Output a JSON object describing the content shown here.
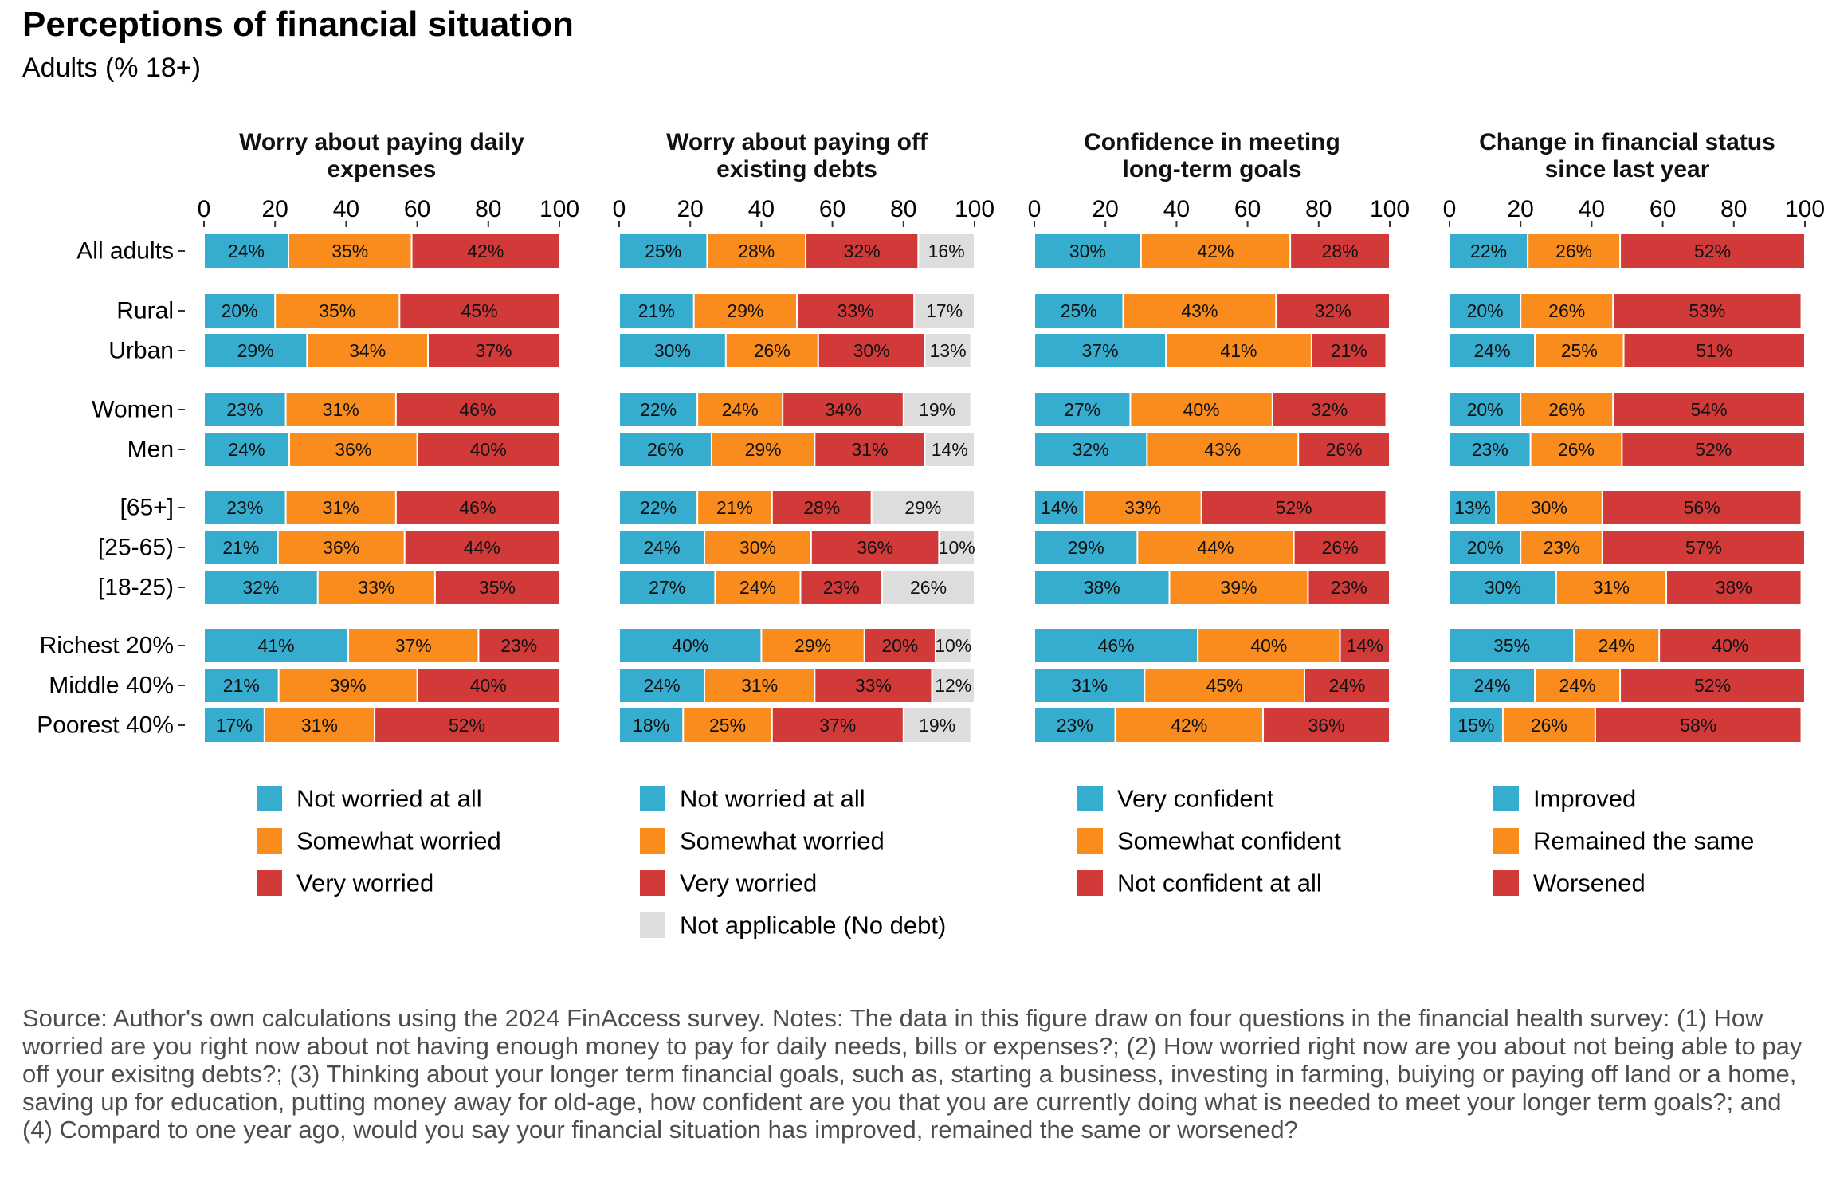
{
  "title": "Perceptions of financial situation",
  "subtitle": "Adults (% 18+)",
  "source": "Source: Author's own calculations using the 2024 FinAccess survey. Notes: The data in this figure draw on four questions in the financial health survey: (1) How worried are you right now about not having enough money to pay for daily needs, bills or expenses?; (2) How worried right now are you about not being able to pay off your exisitng debts?; (3) Thinking about your longer term financial goals, such as, starting a business, investing in farming, buiying or paying off land or a home, saving up for education, putting money away for old-age, how confident are you that you are currently doing what is needed to meet your longer term goals?; and (4) Compard to one year ago, would you say your financial situation has improved, remained the same or worsened?",
  "colors": {
    "blue": "#36ACCE",
    "orange": "#FA8C1E",
    "red": "#D23A3A",
    "grey": "#DDDDDD"
  },
  "chart_data": {
    "type": "bar",
    "orientation": "horizontal-stacked",
    "xlim": [
      0,
      100
    ],
    "xticks": [
      0,
      20,
      40,
      60,
      80,
      100
    ],
    "categories": [
      "All adults",
      "Rural",
      "Urban",
      "Women",
      "Men",
      "[65+]",
      "[25-65)",
      "[18-25)",
      "Richest 20%",
      "Middle 40%",
      "Poorest 40%"
    ],
    "panels": [
      {
        "title": [
          "Worry about paying daily",
          "expenses"
        ],
        "series": [
          {
            "name": "Not worried at all",
            "color": "#36ACCE",
            "values": [
              24,
              20,
              29,
              23,
              24,
              23,
              21,
              32,
              41,
              21,
              17
            ]
          },
          {
            "name": "Somewhat worried",
            "color": "#FA8C1E",
            "values": [
              35,
              35,
              34,
              31,
              36,
              31,
              36,
              33,
              37,
              39,
              31
            ]
          },
          {
            "name": "Very worried",
            "color": "#D23A3A",
            "values": [
              42,
              45,
              37,
              46,
              40,
              46,
              44,
              35,
              23,
              40,
              52
            ]
          }
        ]
      },
      {
        "title": [
          "Worry about paying off",
          "existing debts"
        ],
        "series": [
          {
            "name": "Not worried at all",
            "color": "#36ACCE",
            "values": [
              25,
              21,
              30,
              22,
              26,
              22,
              24,
              27,
              40,
              24,
              18
            ]
          },
          {
            "name": "Somewhat worried",
            "color": "#FA8C1E",
            "values": [
              28,
              29,
              26,
              24,
              29,
              21,
              30,
              24,
              29,
              31,
              25
            ]
          },
          {
            "name": "Very worried",
            "color": "#D23A3A",
            "values": [
              32,
              33,
              30,
              34,
              31,
              28,
              36,
              23,
              20,
              33,
              37
            ]
          },
          {
            "name": "Not applicable (No debt)",
            "color": "#DDDDDD",
            "values": [
              16,
              17,
              13,
              19,
              14,
              29,
              10,
              26,
              10,
              12,
              19
            ]
          }
        ]
      },
      {
        "title": [
          "Confidence in meeting",
          "long-term goals"
        ],
        "series": [
          {
            "name": "Very confident",
            "color": "#36ACCE",
            "values": [
              30,
              25,
              37,
              27,
              32,
              14,
              29,
              38,
              46,
              31,
              23
            ]
          },
          {
            "name": "Somewhat confident",
            "color": "#FA8C1E",
            "values": [
              42,
              43,
              41,
              40,
              43,
              33,
              44,
              39,
              40,
              45,
              42
            ]
          },
          {
            "name": "Not confident at all",
            "color": "#D23A3A",
            "values": [
              28,
              32,
              21,
              32,
              26,
              52,
              26,
              23,
              14,
              24,
              36
            ]
          }
        ]
      },
      {
        "title": [
          "Change in financial status",
          "since last year"
        ],
        "series": [
          {
            "name": "Improved",
            "color": "#36ACCE",
            "values": [
              22,
              20,
              24,
              20,
              23,
              13,
              20,
              30,
              35,
              24,
              15
            ]
          },
          {
            "name": "Remained the same",
            "color": "#FA8C1E",
            "values": [
              26,
              26,
              25,
              26,
              26,
              30,
              23,
              31,
              24,
              24,
              26
            ]
          },
          {
            "name": "Worsened",
            "color": "#D23A3A",
            "values": [
              52,
              53,
              51,
              54,
              52,
              56,
              57,
              38,
              40,
              52,
              58
            ]
          }
        ]
      }
    ]
  }
}
